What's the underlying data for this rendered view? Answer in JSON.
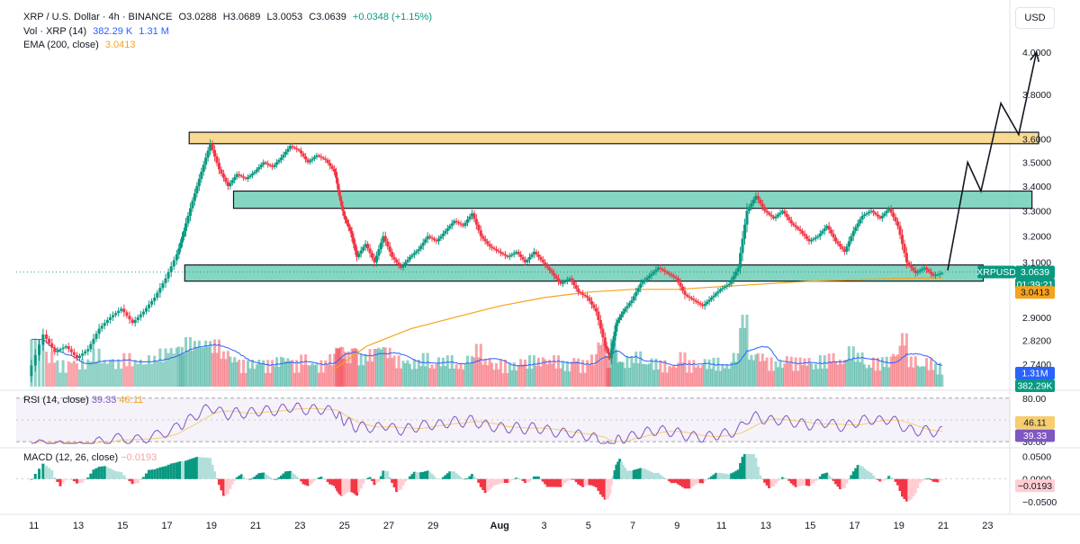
{
  "header": {
    "symbol": "XRP / U.S. Dollar · 4h · BINANCE",
    "open": "O3.0288",
    "high": "H3.0689",
    "low": "L3.0053",
    "close": "C3.0639",
    "change": "+0.0348 (+1.15%)",
    "vol_label": "Vol · XRP (14)",
    "vol_value": "382.29 K",
    "vol_ma": "1.31 M",
    "ema_label": "EMA (200, close)",
    "ema_value": "3.0413"
  },
  "currency_button": "USD",
  "price_badges": {
    "ticker": "XRPUSD",
    "last_price": "3.0639",
    "countdown": "01:39:21",
    "ema": "3.0413",
    "vol_ma": "1.31M",
    "vol": "382.29K"
  },
  "rsi": {
    "label": "RSI (14, close)",
    "value": "39.33",
    "ma_value": "46.11",
    "ticks": [
      "80.00",
      "30.00"
    ],
    "badge_ma": "46.11",
    "badge_value": "39.33"
  },
  "macd": {
    "label": "MACD (12, 26, close)",
    "value": "−0.0193",
    "ticks": [
      "0.0500",
      "0.0000",
      "−0.0500"
    ],
    "badge": "−0.0193"
  },
  "colors": {
    "up": "#089981",
    "down": "#f23645",
    "zone_green": "#5bc8ad",
    "zone_yellow": "#f7cd6e",
    "ema": "#f7a21b",
    "vol_ma": "#2962ff",
    "rsi": "#7e57c2",
    "rsi_ma": "#f7cd6e"
  },
  "chart_data": {
    "type": "candlestick",
    "title": "XRP / U.S. Dollar · 4h · BINANCE",
    "y_axis_ticks": [
      4.0,
      3.8,
      3.6,
      3.5,
      3.4,
      3.3,
      3.2,
      3.1,
      3.0,
      2.9,
      2.82,
      2.74
    ],
    "y_axis_labels": [
      "4.0000",
      "3.8000",
      "3.6000",
      "3.5000",
      "3.4000",
      "3.3000",
      "3.2000",
      "3.1000",
      "3.0000",
      "2.9000",
      "2.8200",
      "2.7400"
    ],
    "ylim": [
      2.66,
      4.08
    ],
    "scale": "log",
    "x_axis_labels": [
      "11",
      "13",
      "15",
      "17",
      "19",
      "21",
      "23",
      "25",
      "27",
      "29",
      "Aug",
      "3",
      "5",
      "7",
      "9",
      "11",
      "13",
      "15",
      "17",
      "19",
      "21",
      "23"
    ],
    "x_day_index": [
      11,
      13,
      15,
      17,
      19,
      21,
      23,
      25,
      27,
      29,
      32,
      34,
      36,
      38,
      40,
      42,
      44,
      46,
      48,
      50,
      52,
      54
    ],
    "xlim": [
      10.2,
      55.0
    ],
    "path_points": [
      [
        10.8,
        2.7
      ],
      [
        11.5,
        2.84
      ],
      [
        12.0,
        2.78
      ],
      [
        12.5,
        2.8
      ],
      [
        13.0,
        2.76
      ],
      [
        13.5,
        2.79
      ],
      [
        14.0,
        2.86
      ],
      [
        14.5,
        2.9
      ],
      [
        15.0,
        2.93
      ],
      [
        15.5,
        2.88
      ],
      [
        16.0,
        2.92
      ],
      [
        16.5,
        2.97
      ],
      [
        17.0,
        3.04
      ],
      [
        17.5,
        3.13
      ],
      [
        17.8,
        3.22
      ],
      [
        18.2,
        3.34
      ],
      [
        18.6,
        3.46
      ],
      [
        19.0,
        3.58
      ],
      [
        19.4,
        3.47
      ],
      [
        19.8,
        3.4
      ],
      [
        20.2,
        3.45
      ],
      [
        20.6,
        3.43
      ],
      [
        21.0,
        3.46
      ],
      [
        21.4,
        3.5
      ],
      [
        21.8,
        3.48
      ],
      [
        22.2,
        3.52
      ],
      [
        22.6,
        3.57
      ],
      [
        23.0,
        3.55
      ],
      [
        23.4,
        3.5
      ],
      [
        23.8,
        3.53
      ],
      [
        24.2,
        3.51
      ],
      [
        24.6,
        3.46
      ],
      [
        24.8,
        3.36
      ],
      [
        25.0,
        3.28
      ],
      [
        25.3,
        3.22
      ],
      [
        25.6,
        3.12
      ],
      [
        26.0,
        3.17
      ],
      [
        26.4,
        3.1
      ],
      [
        26.8,
        3.2
      ],
      [
        27.2,
        3.12
      ],
      [
        27.6,
        3.08
      ],
      [
        28.0,
        3.12
      ],
      [
        28.4,
        3.15
      ],
      [
        28.8,
        3.2
      ],
      [
        29.2,
        3.18
      ],
      [
        29.6,
        3.22
      ],
      [
        30.0,
        3.26
      ],
      [
        30.4,
        3.24
      ],
      [
        30.8,
        3.29
      ],
      [
        31.2,
        3.2
      ],
      [
        31.6,
        3.16
      ],
      [
        32.0,
        3.14
      ],
      [
        32.4,
        3.12
      ],
      [
        32.8,
        3.14
      ],
      [
        33.2,
        3.1
      ],
      [
        33.6,
        3.14
      ],
      [
        34.0,
        3.1
      ],
      [
        34.4,
        3.06
      ],
      [
        34.8,
        3.02
      ],
      [
        35.2,
        3.04
      ],
      [
        35.6,
        2.99
      ],
      [
        36.0,
        2.97
      ],
      [
        36.4,
        2.92
      ],
      [
        36.8,
        2.8
      ],
      [
        37.0,
        2.76
      ],
      [
        37.3,
        2.88
      ],
      [
        37.6,
        2.92
      ],
      [
        38.0,
        2.96
      ],
      [
        38.4,
        3.02
      ],
      [
        38.8,
        3.05
      ],
      [
        39.2,
        3.08
      ],
      [
        39.6,
        3.06
      ],
      [
        40.0,
        3.04
      ],
      [
        40.4,
        2.98
      ],
      [
        40.8,
        2.96
      ],
      [
        41.2,
        2.94
      ],
      [
        41.6,
        2.97
      ],
      [
        42.0,
        3.0
      ],
      [
        42.4,
        3.02
      ],
      [
        42.8,
        3.08
      ],
      [
        43.2,
        3.3
      ],
      [
        43.6,
        3.36
      ],
      [
        44.0,
        3.3
      ],
      [
        44.4,
        3.27
      ],
      [
        44.8,
        3.3
      ],
      [
        45.2,
        3.25
      ],
      [
        45.6,
        3.22
      ],
      [
        46.0,
        3.18
      ],
      [
        46.4,
        3.2
      ],
      [
        46.8,
        3.24
      ],
      [
        47.2,
        3.18
      ],
      [
        47.6,
        3.14
      ],
      [
        48.0,
        3.22
      ],
      [
        48.4,
        3.28
      ],
      [
        48.8,
        3.3
      ],
      [
        49.2,
        3.27
      ],
      [
        49.6,
        3.31
      ],
      [
        50.0,
        3.24
      ],
      [
        50.4,
        3.1
      ],
      [
        50.8,
        3.06
      ],
      [
        51.2,
        3.08
      ],
      [
        51.6,
        3.05
      ],
      [
        52.0,
        3.06
      ]
    ],
    "ema200_points": [
      [
        24.5,
        2.72
      ],
      [
        26.0,
        2.8
      ],
      [
        28.0,
        2.86
      ],
      [
        30.0,
        2.9
      ],
      [
        32.0,
        2.94
      ],
      [
        34.0,
        2.97
      ],
      [
        36.0,
        2.99
      ],
      [
        38.0,
        3.0
      ],
      [
        40.0,
        3.0
      ],
      [
        42.0,
        3.01
      ],
      [
        44.0,
        3.02
      ],
      [
        46.0,
        3.03
      ],
      [
        48.0,
        3.035
      ],
      [
        50.0,
        3.04
      ],
      [
        52.0,
        3.0413
      ]
    ],
    "zones": [
      {
        "color": "yellow",
        "x_from": 18.0,
        "x_to": 56.3,
        "y_low": 3.58,
        "y_high": 3.63
      },
      {
        "color": "green",
        "x_from": 20.0,
        "x_to": 56.0,
        "y_low": 3.31,
        "y_high": 3.38
      },
      {
        "color": "green",
        "x_from": 17.8,
        "x_to": 53.8,
        "y_low": 3.03,
        "y_high": 3.09
      }
    ],
    "projection_points": [
      [
        52.2,
        3.07
      ],
      [
        53.1,
        3.5
      ],
      [
        53.7,
        3.38
      ],
      [
        54.6,
        3.76
      ],
      [
        55.4,
        3.62
      ],
      [
        56.2,
        4.0
      ]
    ],
    "rsi_range": [
      25,
      85
    ],
    "macd_range": [
      -0.07,
      0.065
    ]
  }
}
